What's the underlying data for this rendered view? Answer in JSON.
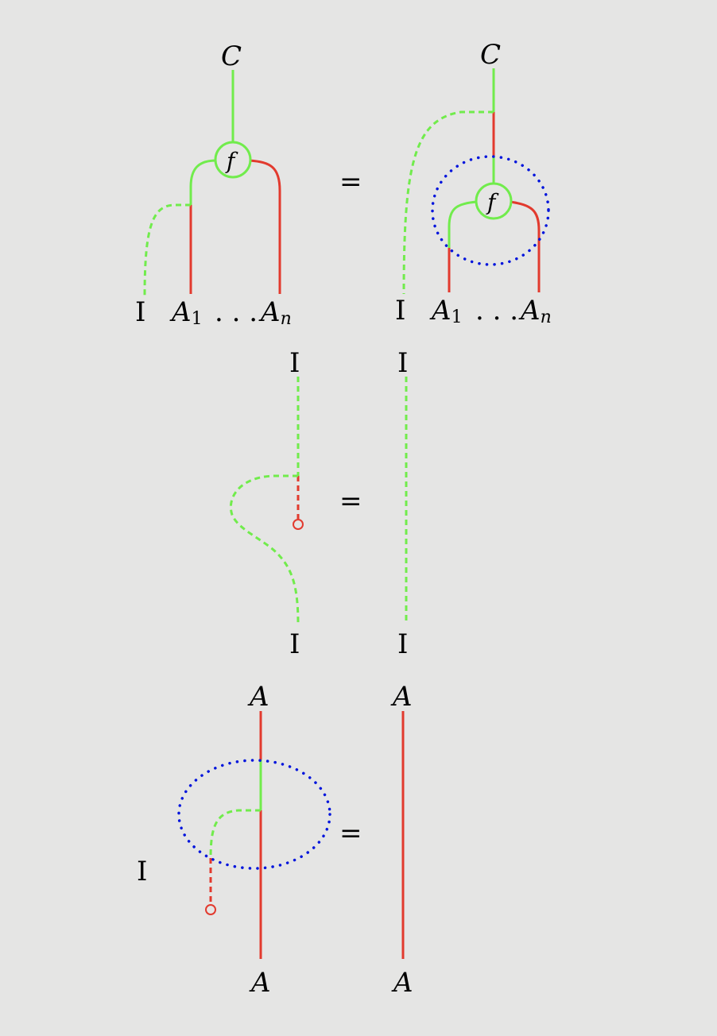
{
  "colors": {
    "background": "#e5e5e4",
    "green_wire": "#71ec4c",
    "red_wire": "#e23a2e",
    "blue_dotted": "#0014dc"
  },
  "labels": {
    "C": "C",
    "f": "f",
    "A": "A",
    "unit_I": "I",
    "A1_base": "A",
    "A1_sub": "1",
    "An_base": "A",
    "An_sub": "n",
    "dots": ". . .",
    "equals": "="
  }
}
